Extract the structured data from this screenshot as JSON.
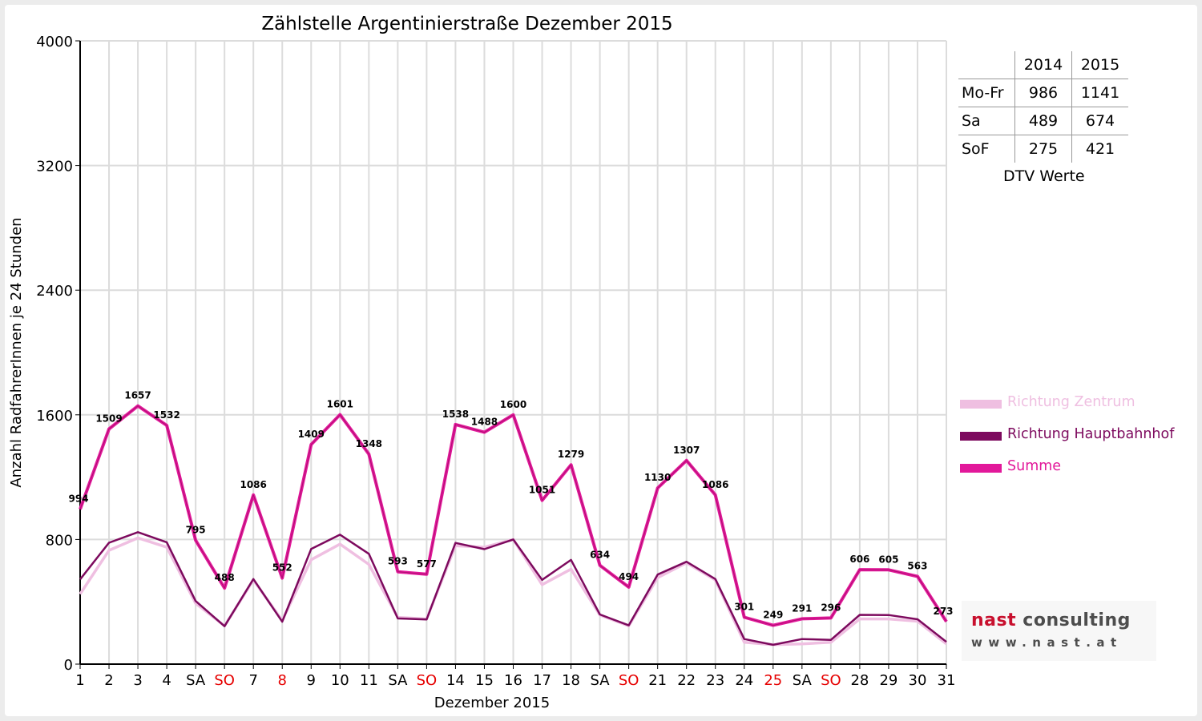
{
  "chart_data": {
    "type": "line",
    "title": "Zählstelle Argentinierstraße Dezember 2015",
    "xlabel": "Dezember 2015",
    "ylabel": "Anzahl RadfahrerInnen je 24 Stunden",
    "ylim": [
      0,
      4000
    ],
    "yticks": [
      "0",
      "800",
      "1600",
      "2400",
      "3200",
      "4000"
    ],
    "ytick_values": [
      0,
      800,
      1600,
      2400,
      3200,
      4000
    ],
    "grid": true,
    "categories": [
      "1",
      "2",
      "3",
      "4",
      "SA",
      "SO",
      "7",
      "8",
      "9",
      "10",
      "11",
      "SA",
      "SO",
      "14",
      "15",
      "16",
      "17",
      "18",
      "SA",
      "SO",
      "21",
      "22",
      "23",
      "24",
      "25",
      "SA",
      "SO",
      "28",
      "29",
      "30",
      "31"
    ],
    "holiday_labels": [
      "SO",
      "8",
      "25"
    ],
    "series": [
      {
        "name": "Richtung Zentrum",
        "color": "#efbfe1",
        "values": [
          450,
          730,
          810,
          750,
          390,
          245,
          540,
          280,
          670,
          770,
          640,
          300,
          290,
          760,
          750,
          800,
          510,
          610,
          315,
          245,
          555,
          650,
          540,
          140,
          125,
          130,
          140,
          290,
          290,
          275,
          130
        ]
      },
      {
        "name": "Richtung Hauptbahnhof",
        "color": "#7d0a5e",
        "values": [
          544,
          779,
          847,
          782,
          405,
          243,
          546,
          272,
          739,
          831,
          708,
          293,
          287,
          778,
          738,
          800,
          541,
          669,
          319,
          249,
          575,
          657,
          546,
          161,
          124,
          161,
          156,
          316,
          315,
          288,
          143
        ]
      },
      {
        "name": "Summe",
        "color": "#e2189a",
        "values": [
          994,
          1509,
          1657,
          1532,
          795,
          488,
          1086,
          552,
          1409,
          1601,
          1348,
          593,
          577,
          1538,
          1488,
          1600,
          1051,
          1279,
          634,
          494,
          1130,
          1307,
          1086,
          301,
          249,
          291,
          296,
          606,
          605,
          563,
          273
        ],
        "data_labels": [
          "994",
          "1509",
          "1657",
          "1532",
          "795",
          "488",
          "1086",
          "552",
          "1409",
          "1601",
          "1348",
          "593",
          "577",
          "1538",
          "1488",
          "1600",
          "1051",
          "1279",
          "634",
          "494",
          "1130",
          "1307",
          "1086",
          "301",
          "249",
          "291",
          "296",
          "606",
          "605",
          "563",
          "273"
        ]
      }
    ],
    "legend_position": "right"
  },
  "dtv_table": {
    "headers": [
      "",
      "2014",
      "2015"
    ],
    "rows": [
      {
        "label": "Mo-Fr",
        "v2014": "986",
        "v2015": "1141"
      },
      {
        "label": "Sa",
        "v2014": "489",
        "v2015": "674"
      },
      {
        "label": "SoF",
        "v2014": "275",
        "v2015": "421"
      }
    ],
    "caption": "DTV Werte"
  },
  "legend": {
    "items": [
      {
        "label": "Richtung Zentrum",
        "color": "#efbfe1"
      },
      {
        "label": "Richtung Hauptbahnhof",
        "color": "#7d0a5e"
      },
      {
        "label": "Summe",
        "color": "#e2189a"
      }
    ]
  },
  "logo": {
    "part1": "nast",
    "part2": "consulting",
    "url": "www.nast.at"
  }
}
